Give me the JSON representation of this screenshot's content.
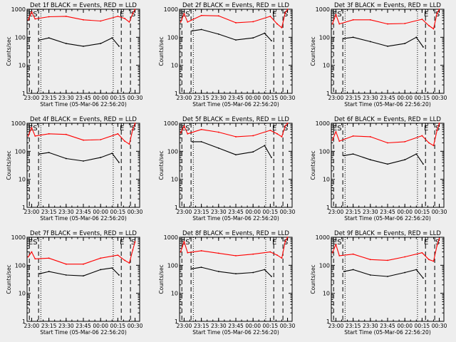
{
  "chart_data": [
    {
      "type": "line",
      "title": "Det 1f BLACK = Events, RED = LLD",
      "xlabel": "Start Time (05-Mar-06 22:56:20)",
      "ylabel": "Counts/sec",
      "x_ticks": [
        "23:00",
        "23:15",
        "23:30",
        "23:45",
        "00:00",
        "00:15",
        "00:30"
      ],
      "y_ticks": [
        "1",
        "10",
        "100",
        "1000"
      ],
      "ylim": [
        1,
        1000
      ],
      "y_scale": "log",
      "markers": [
        "ES",
        "E",
        "S"
      ],
      "dashed_lines_at": [
        "22:58",
        "23:06",
        "00:18",
        "00:26"
      ],
      "dotted_lines_at": [
        "23:08",
        "00:11"
      ],
      "series": [
        {
          "name": "Events",
          "color": "#000000",
          "x": [
            "23:07",
            "23:15",
            "23:30",
            "23:45",
            "00:00",
            "00:10",
            "00:16"
          ],
          "values": [
            80,
            95,
            60,
            48,
            60,
            95,
            48
          ]
        },
        {
          "name": "LLD",
          "color": "#ff0000",
          "x": [
            "22:57",
            "23:00",
            "23:03",
            "23:15",
            "23:30",
            "23:45",
            "00:00",
            "00:15",
            "00:21",
            "00:25",
            "00:28",
            "00:30"
          ],
          "values": [
            420,
            800,
            450,
            540,
            560,
            420,
            380,
            560,
            470,
            350,
            700,
            1000
          ]
        }
      ]
    },
    {
      "type": "line",
      "title": "Det 2f BLACK = Events, RED = LLD",
      "xlabel": "Start Time (05-Mar-06 22:56:20)",
      "ylabel": "Counts/sec",
      "x_ticks": [
        "23:00",
        "23:15",
        "23:30",
        "23:45",
        "00:00",
        "00:15",
        "00:30"
      ],
      "y_ticks": [
        "1",
        "10",
        "100",
        "1000"
      ],
      "ylim": [
        1,
        1000
      ],
      "y_scale": "log",
      "markers": [
        "ES",
        "E",
        "S"
      ],
      "dashed_lines_at": [
        "22:58",
        "23:06",
        "00:18",
        "00:26"
      ],
      "dotted_lines_at": [
        "23:08",
        "00:11"
      ],
      "series": [
        {
          "name": "Events",
          "color": "#000000",
          "x": [
            "23:07",
            "23:15",
            "23:30",
            "23:45",
            "00:00",
            "00:10",
            "00:16"
          ],
          "values": [
            170,
            190,
            130,
            80,
            95,
            140,
            75
          ]
        },
        {
          "name": "LLD",
          "color": "#ff0000",
          "x": [
            "22:57",
            "23:00",
            "23:03",
            "23:15",
            "23:30",
            "23:45",
            "00:00",
            "00:15",
            "00:21",
            "00:25",
            "00:28",
            "00:30"
          ],
          "values": [
            350,
            700,
            350,
            600,
            580,
            330,
            360,
            560,
            300,
            220,
            750,
            1000
          ]
        }
      ]
    },
    {
      "type": "line",
      "title": "Det 3f BLACK = Events, RED = LLD",
      "xlabel": "Start Time (05-Mar-06 22:56:20)",
      "ylabel": "Counts/sec",
      "x_ticks": [
        "23:00",
        "23:15",
        "23:30",
        "23:45",
        "00:00",
        "00:15",
        "00:30"
      ],
      "y_ticks": [
        "1",
        "10",
        "100",
        "1000"
      ],
      "ylim": [
        1,
        1000
      ],
      "y_scale": "log",
      "markers": [
        "ES",
        "E",
        "S"
      ],
      "dashed_lines_at": [
        "22:58",
        "23:06",
        "00:18",
        "00:26"
      ],
      "dotted_lines_at": [
        "23:08",
        "00:11"
      ],
      "series": [
        {
          "name": "Events",
          "color": "#000000",
          "x": [
            "23:07",
            "23:15",
            "23:30",
            "23:45",
            "00:00",
            "00:10",
            "00:16"
          ],
          "values": [
            90,
            100,
            70,
            48,
            60,
            100,
            45
          ]
        },
        {
          "name": "LLD",
          "color": "#ff0000",
          "x": [
            "22:57",
            "23:00",
            "23:03",
            "23:15",
            "23:30",
            "23:45",
            "00:00",
            "00:15",
            "00:21",
            "00:25",
            "00:28",
            "00:30"
          ],
          "values": [
            300,
            650,
            300,
            420,
            420,
            300,
            310,
            440,
            260,
            200,
            700,
            1000
          ]
        }
      ]
    },
    {
      "type": "line",
      "title": "Det 4f BLACK = Events, RED = LLD",
      "xlabel": "Start Time (05-Mar-06 22:56:20)",
      "ylabel": "Counts/sec",
      "x_ticks": [
        "23:00",
        "23:15",
        "23:30",
        "23:45",
        "00:00",
        "00:15",
        "00:30"
      ],
      "y_ticks": [
        "1",
        "10",
        "100",
        "1000"
      ],
      "ylim": [
        1,
        1000
      ],
      "y_scale": "log",
      "markers": [
        "ES",
        "E",
        "S"
      ],
      "dashed_lines_at": [
        "22:58",
        "23:06",
        "00:18",
        "00:26"
      ],
      "dotted_lines_at": [
        "23:08",
        "00:11"
      ],
      "series": [
        {
          "name": "Events",
          "color": "#000000",
          "x": [
            "23:07",
            "23:15",
            "23:30",
            "23:45",
            "00:00",
            "00:10",
            "00:16"
          ],
          "values": [
            80,
            90,
            55,
            45,
            60,
            85,
            40
          ]
        },
        {
          "name": "LLD",
          "color": "#ff0000",
          "x": [
            "22:57",
            "23:00",
            "23:03",
            "23:15",
            "23:30",
            "23:45",
            "00:00",
            "00:15",
            "00:21",
            "00:25",
            "00:28",
            "00:30"
          ],
          "values": [
            350,
            700,
            350,
            420,
            400,
            250,
            260,
            420,
            230,
            180,
            600,
            1000
          ]
        }
      ]
    },
    {
      "type": "line",
      "title": "Det 5f BLACK = Events, RED = LLD",
      "xlabel": "Start Time (05-Mar-06 22:56:20)",
      "ylabel": "Counts/sec",
      "x_ticks": [
        "23:00",
        "23:15",
        "23:30",
        "23:45",
        "00:00",
        "00:15",
        "00:30"
      ],
      "y_ticks": [
        "1",
        "10",
        "100",
        "1000"
      ],
      "ylim": [
        1,
        1000
      ],
      "y_scale": "log",
      "markers": [
        "ES",
        "E",
        "S"
      ],
      "dashed_lines_at": [
        "22:58",
        "23:06",
        "00:18",
        "00:26"
      ],
      "dotted_lines_at": [
        "23:08",
        "00:11"
      ],
      "series": [
        {
          "name": "Events",
          "color": "#000000",
          "x": [
            "23:07",
            "23:15",
            "23:30",
            "23:45",
            "00:00",
            "00:10",
            "00:16"
          ],
          "values": [
            220,
            220,
            130,
            75,
            95,
            160,
            60
          ]
        },
        {
          "name": "LLD",
          "color": "#ff0000",
          "x": [
            "22:57",
            "23:00",
            "23:03",
            "23:15",
            "23:30",
            "23:45",
            "00:00",
            "00:15",
            "00:21",
            "00:25",
            "00:28",
            "00:30"
          ],
          "values": [
            450,
            800,
            420,
            600,
            480,
            330,
            360,
            560,
            420,
            330,
            800,
            1000
          ]
        }
      ]
    },
    {
      "type": "line",
      "title": "Det 6f BLACK = Events, RED = LLD",
      "xlabel": "Start Time (05-Mar-06 22:56:20)",
      "ylabel": "Counts/sec",
      "x_ticks": [
        "23:00",
        "23:15",
        "23:30",
        "23:45",
        "00:00",
        "00:15",
        "00:30"
      ],
      "y_ticks": [
        "1",
        "10",
        "100",
        "1000"
      ],
      "ylim": [
        1,
        1000
      ],
      "y_scale": "log",
      "markers": [
        "ES",
        "E",
        "S"
      ],
      "dashed_lines_at": [
        "22:58",
        "23:06",
        "00:18",
        "00:26"
      ],
      "dotted_lines_at": [
        "23:08",
        "00:11"
      ],
      "series": [
        {
          "name": "Events",
          "color": "#000000",
          "x": [
            "23:07",
            "23:15",
            "23:30",
            "23:45",
            "00:00",
            "00:10",
            "00:16"
          ],
          "values": [
            70,
            80,
            50,
            35,
            50,
            80,
            35
          ]
        },
        {
          "name": "LLD",
          "color": "#ff0000",
          "x": [
            "22:57",
            "23:00",
            "23:03",
            "23:15",
            "23:30",
            "23:45",
            "00:00",
            "00:15",
            "00:21",
            "00:25",
            "00:28",
            "00:30"
          ],
          "values": [
            250,
            500,
            230,
            350,
            330,
            200,
            220,
            360,
            200,
            160,
            550,
            1000
          ]
        }
      ]
    },
    {
      "type": "line",
      "title": "Det 7f BLACK = Events, RED = LLD",
      "xlabel": "Start Time (05-Mar-06 22:56:20)",
      "ylabel": "Counts/sec",
      "x_ticks": [
        "23:00",
        "23:15",
        "23:30",
        "23:45",
        "00:00",
        "00:15",
        "00:30"
      ],
      "y_ticks": [
        "1",
        "10",
        "100",
        "1000"
      ],
      "ylim": [
        1,
        1000
      ],
      "y_scale": "log",
      "markers": [
        "ES",
        "E",
        "S"
      ],
      "dashed_lines_at": [
        "22:58",
        "23:06",
        "00:18",
        "00:26"
      ],
      "dotted_lines_at": [
        "23:08",
        "00:11"
      ],
      "series": [
        {
          "name": "Events",
          "color": "#000000",
          "x": [
            "23:07",
            "23:15",
            "23:30",
            "23:45",
            "00:00",
            "00:10",
            "00:16"
          ],
          "values": [
            50,
            60,
            45,
            42,
            70,
            80,
            45
          ]
        },
        {
          "name": "LLD",
          "color": "#ff0000",
          "x": [
            "22:57",
            "23:00",
            "23:03",
            "23:15",
            "23:30",
            "23:45",
            "00:00",
            "00:15",
            "00:21",
            "00:25",
            "00:28",
            "00:30"
          ],
          "values": [
            200,
            300,
            170,
            180,
            110,
            110,
            180,
            230,
            150,
            120,
            350,
            700
          ]
        }
      ]
    },
    {
      "type": "line",
      "title": "Det 8f BLACK = Events, RED = LLD",
      "xlabel": "Start Time (05-Mar-06 22:56:20)",
      "ylabel": "Counts/sec",
      "x_ticks": [
        "23:00",
        "23:15",
        "23:30",
        "23:45",
        "00:00",
        "00:15",
        "00:30"
      ],
      "y_ticks": [
        "1",
        "10",
        "100",
        "1000"
      ],
      "ylim": [
        1,
        1000
      ],
      "y_scale": "log",
      "markers": [
        "ES",
        "E",
        "S"
      ],
      "dashed_lines_at": [
        "22:58",
        "23:06",
        "00:18",
        "00:26"
      ],
      "dotted_lines_at": [
        "23:08",
        "00:11"
      ],
      "series": [
        {
          "name": "Events",
          "color": "#000000",
          "x": [
            "23:07",
            "23:15",
            "23:30",
            "23:45",
            "00:00",
            "00:10",
            "00:16"
          ],
          "values": [
            75,
            85,
            60,
            50,
            55,
            70,
            40
          ]
        },
        {
          "name": "LLD",
          "color": "#ff0000",
          "x": [
            "22:57",
            "23:00",
            "23:03",
            "23:15",
            "23:30",
            "23:45",
            "00:00",
            "00:15",
            "00:21",
            "00:25",
            "00:28",
            "00:30"
          ],
          "values": [
            300,
            700,
            280,
            330,
            270,
            220,
            250,
            300,
            230,
            180,
            700,
            1000
          ]
        }
      ]
    },
    {
      "type": "line",
      "title": "Det 9f BLACK = Events, RED = LLD",
      "xlabel": "Start Time (05-Mar-06 22:56:20)",
      "ylabel": "Counts/sec",
      "x_ticks": [
        "23:00",
        "23:15",
        "23:30",
        "23:45",
        "00:00",
        "00:15",
        "00:30"
      ],
      "y_ticks": [
        "1",
        "10",
        "100",
        "1000"
      ],
      "ylim": [
        1,
        1000
      ],
      "y_scale": "log",
      "markers": [
        "ES",
        "E",
        "S"
      ],
      "dashed_lines_at": [
        "22:58",
        "23:06",
        "00:18",
        "00:26"
      ],
      "dotted_lines_at": [
        "23:08",
        "00:11"
      ],
      "series": [
        {
          "name": "Events",
          "color": "#000000",
          "x": [
            "23:07",
            "23:15",
            "23:30",
            "23:45",
            "00:00",
            "00:10",
            "00:16"
          ],
          "values": [
            60,
            70,
            45,
            40,
            55,
            70,
            35
          ]
        },
        {
          "name": "LLD",
          "color": "#ff0000",
          "x": [
            "22:57",
            "23:00",
            "23:03",
            "23:15",
            "23:30",
            "23:45",
            "00:00",
            "00:15",
            "00:21",
            "00:25",
            "00:28",
            "00:30"
          ],
          "values": [
            280,
            550,
            220,
            250,
            160,
            150,
            200,
            280,
            160,
            140,
            500,
            900
          ]
        }
      ]
    }
  ]
}
